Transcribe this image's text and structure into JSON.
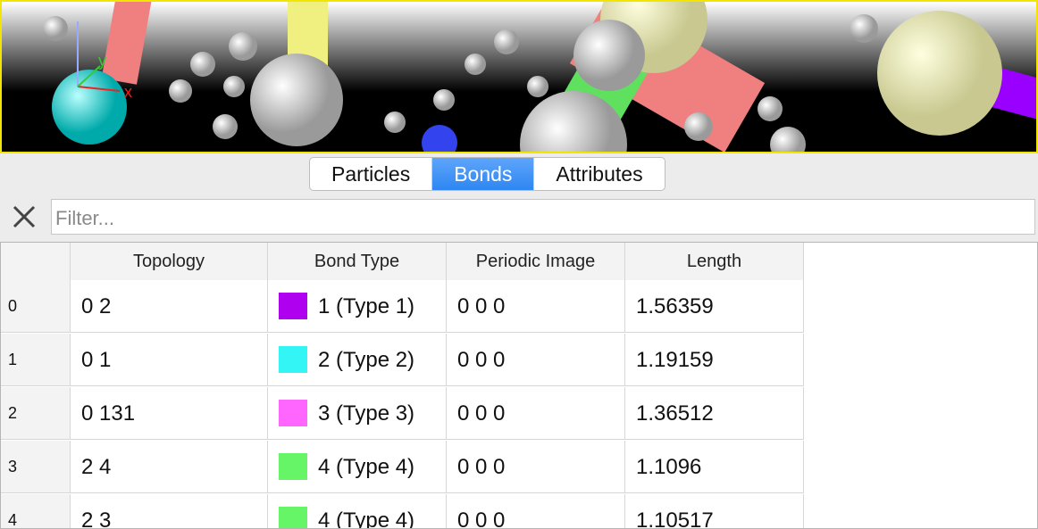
{
  "viewport": {
    "axis_labels": [
      "x",
      "y"
    ]
  },
  "tabs": [
    "Particles",
    "Bonds",
    "Attributes"
  ],
  "active_tab_index": 1,
  "filter": {
    "placeholder": "Filter..."
  },
  "table": {
    "columns": [
      "Topology",
      "Bond Type",
      "Periodic Image",
      "Length"
    ],
    "rows": [
      {
        "index": "0",
        "topology": "0 2",
        "color": "#b000f0",
        "bond_type": "1 (Type 1)",
        "periodic_image": "0 0 0",
        "length": "1.56359"
      },
      {
        "index": "1",
        "topology": "0 1",
        "color": "#33f5f5",
        "bond_type": "2 (Type 2)",
        "periodic_image": "0 0 0",
        "length": "1.19159"
      },
      {
        "index": "2",
        "topology": "0 131",
        "color": "#ff66ff",
        "bond_type": "3 (Type 3)",
        "periodic_image": "0 0 0",
        "length": "1.36512"
      },
      {
        "index": "3",
        "topology": "2 4",
        "color": "#66f566",
        "bond_type": "4 (Type 4)",
        "periodic_image": "0 0 0",
        "length": "1.1096"
      },
      {
        "index": "4",
        "topology": "2 3",
        "color": "#66f566",
        "bond_type": "4 (Type 4)",
        "periodic_image": "0 0 0",
        "length": "1.10517"
      }
    ]
  }
}
